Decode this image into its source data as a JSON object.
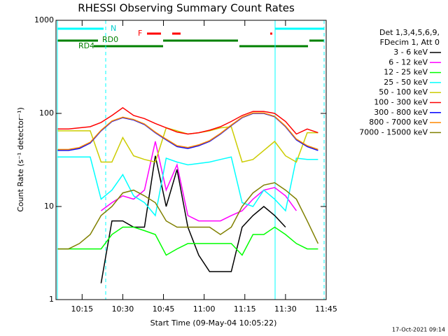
{
  "chart_data": {
    "type": "line",
    "title": "RHESSI Observing Summary Count Rates",
    "x_label": "Start Time (09-May-04 10:05:22)",
    "y_label": "Count Rate (s⁻¹ detector⁻¹)",
    "footer": "17-Oct-2021 09:14",
    "annotations": [
      "N",
      "F",
      "RD0",
      "RD4"
    ],
    "legend_header": [
      "Det 1,3,4,5,6,9,",
      "FDecim 1, Att 0"
    ],
    "log_y": true,
    "xlim": [
      5.37,
      105
    ],
    "xticks": [
      {
        "value": 15,
        "label": "10:15"
      },
      {
        "value": 30,
        "label": "10:30"
      },
      {
        "value": 45,
        "label": "10:45"
      },
      {
        "value": 60,
        "label": "11:00"
      },
      {
        "value": 75,
        "label": "11:15"
      },
      {
        "value": 90,
        "label": "11:30"
      },
      {
        "value": 105,
        "label": "11:45"
      }
    ],
    "ylim": [
      1,
      1000
    ],
    "yticks": [
      1,
      10,
      100,
      1000
    ],
    "x": [
      6,
      10,
      14,
      18,
      22,
      26,
      30,
      34,
      38,
      42,
      46,
      50,
      54,
      58,
      62,
      66,
      70,
      74,
      78,
      82,
      86,
      90,
      94,
      98,
      102
    ],
    "series": [
      {
        "name": "3 - 6 keV",
        "color": "#000000",
        "values": [
          null,
          null,
          null,
          null,
          1.5,
          7,
          7,
          6,
          6,
          35,
          10,
          25,
          6,
          3,
          2,
          2,
          2,
          6,
          8,
          10,
          8,
          6,
          null,
          null,
          null
        ]
      },
      {
        "name": "6 - 12 keV",
        "color": "#ff00ff",
        "values": [
          null,
          null,
          null,
          null,
          9,
          11,
          13,
          12,
          15,
          50,
          15,
          28,
          8,
          7,
          7,
          7,
          8,
          9,
          12,
          15,
          16,
          13,
          9,
          null,
          null
        ]
      },
      {
        "name": "12 - 25 keV",
        "color": "#00ff00",
        "values": [
          3.5,
          3.5,
          3.5,
          3.5,
          3.5,
          5,
          6,
          6,
          5.5,
          5,
          3,
          3.5,
          4,
          4,
          4,
          4,
          4,
          3,
          5,
          5,
          6,
          5,
          4,
          3.5,
          3.5
        ]
      },
      {
        "name": "25 - 50 keV",
        "color": "#00ffff",
        "values": [
          34,
          34,
          34,
          34,
          12,
          15,
          22,
          13,
          11,
          8,
          33,
          30,
          28,
          29,
          30,
          32,
          34,
          11,
          10,
          15,
          12,
          9,
          33,
          32,
          32
        ]
      },
      {
        "name": "50 - 100 keV",
        "color": "#cccc00",
        "values": [
          65,
          65,
          65,
          65,
          30,
          30,
          55,
          35,
          32,
          30,
          70,
          65,
          60,
          62,
          65,
          70,
          72,
          30,
          32,
          40,
          50,
          35,
          30,
          62,
          62
        ]
      },
      {
        "name": "100 - 300 keV",
        "color": "#ff0000",
        "values": [
          68,
          68,
          70,
          72,
          80,
          95,
          115,
          95,
          88,
          78,
          70,
          63,
          60,
          62,
          66,
          72,
          82,
          95,
          105,
          105,
          100,
          82,
          60,
          68,
          62
        ]
      },
      {
        "name": "300 - 800 keV",
        "color": "#0000ff",
        "values": [
          40,
          40,
          42,
          48,
          65,
          82,
          90,
          85,
          76,
          62,
          52,
          44,
          42,
          45,
          50,
          60,
          74,
          90,
          100,
          100,
          92,
          72,
          52,
          44,
          40
        ]
      },
      {
        "name": "800 - 7000 keV",
        "color": "#ff8800",
        "values": [
          41,
          41,
          43,
          49,
          66,
          83,
          91,
          86,
          77,
          63,
          53,
          45,
          43,
          46,
          51,
          61,
          75,
          91,
          101,
          101,
          93,
          73,
          53,
          45,
          41
        ]
      },
      {
        "name": "7000 - 15000 keV",
        "color": "#808000",
        "values": [
          3.5,
          3.5,
          4,
          5,
          8,
          10,
          14,
          15,
          13,
          11,
          7,
          6,
          6,
          6,
          6,
          5,
          6,
          10,
          14,
          17,
          18,
          15,
          12,
          7,
          4
        ]
      }
    ]
  }
}
